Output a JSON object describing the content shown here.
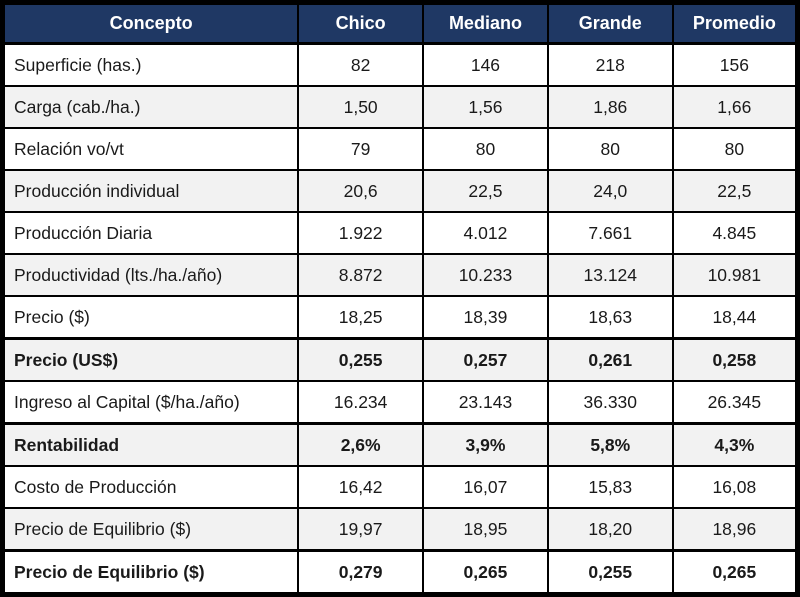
{
  "table": {
    "columns": [
      "Concepto",
      "Chico",
      "Mediano",
      "Grande",
      "Promedio"
    ],
    "rows": [
      {
        "concepto": "Superficie (has.)",
        "values": [
          "82",
          "146",
          "218",
          "156"
        ],
        "bold": false
      },
      {
        "concepto": "Carga (cab./ha.)",
        "values": [
          "1,50",
          "1,56",
          "1,86",
          "1,66"
        ],
        "bold": false
      },
      {
        "concepto": "Relación vo/vt",
        "values": [
          "79",
          "80",
          "80",
          "80"
        ],
        "bold": false
      },
      {
        "concepto": "Producción individual",
        "values": [
          "20,6",
          "22,5",
          "24,0",
          "22,5"
        ],
        "bold": false
      },
      {
        "concepto": "Producción Diaria",
        "values": [
          "1.922",
          "4.012",
          "7.661",
          "4.845"
        ],
        "bold": false
      },
      {
        "concepto": "Productividad (lts./ha./año)",
        "values": [
          "8.872",
          "10.233",
          "13.124",
          "10.981"
        ],
        "bold": false
      },
      {
        "concepto": "Precio ($)",
        "values": [
          "18,25",
          "18,39",
          "18,63",
          "18,44"
        ],
        "bold": false
      },
      {
        "concepto": "Precio (US$)",
        "values": [
          "0,255",
          "0,257",
          "0,261",
          "0,258"
        ],
        "bold": true
      },
      {
        "concepto": "Ingreso al Capital ($/ha./año)",
        "values": [
          "16.234",
          "23.143",
          "36.330",
          "26.345"
        ],
        "bold": false
      },
      {
        "concepto": "Rentabilidad",
        "values": [
          "2,6%",
          "3,9%",
          "5,8%",
          "4,3%"
        ],
        "bold": true
      },
      {
        "concepto": "Costo de Producción",
        "values": [
          "16,42",
          "16,07",
          "15,83",
          "16,08"
        ],
        "bold": false
      },
      {
        "concepto": "Precio de Equilibrio ($)",
        "values": [
          "19,97",
          "18,95",
          "18,20",
          "18,96"
        ],
        "bold": false
      },
      {
        "concepto": "Precio de Equilibrio ($)",
        "values": [
          "0,279",
          "0,265",
          "0,255",
          "0,265"
        ],
        "bold": true
      }
    ]
  },
  "colors": {
    "header_bg": "#1F3864",
    "header_text": "#FFFFFF",
    "row_alt_bg": "#F2F2F2",
    "border": "#000000"
  }
}
